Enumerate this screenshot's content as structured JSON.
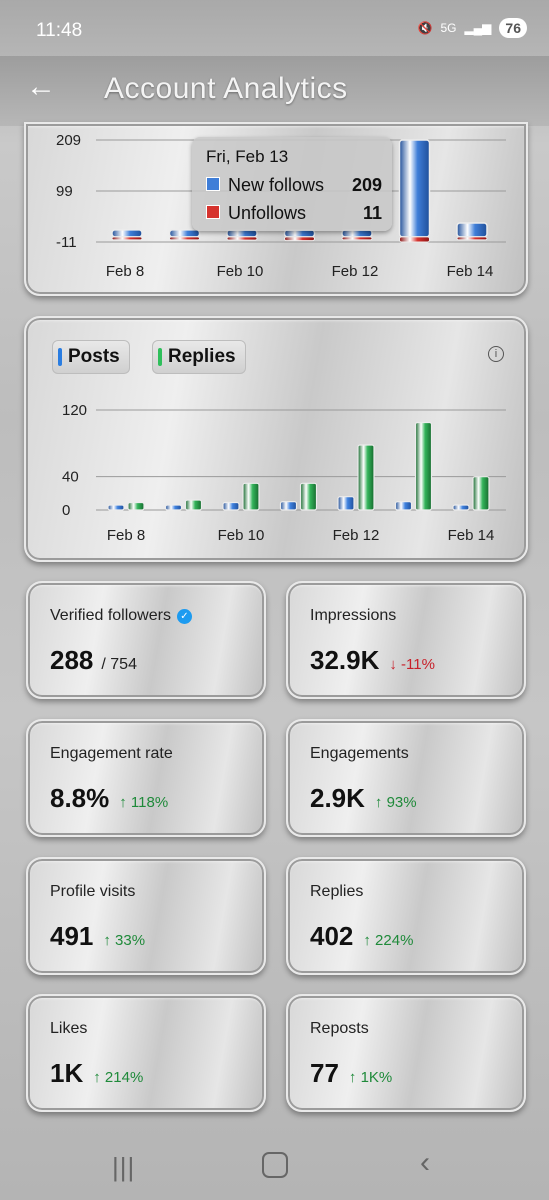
{
  "status_bar": {
    "time": "11:48",
    "network": "5G",
    "battery": "76"
  },
  "header": {
    "title": "Account Analytics"
  },
  "follows_chart": {
    "tooltip": {
      "date": "Fri, Feb 13",
      "new_follows_label": "New follows",
      "new_follows_value": "209",
      "unfollows_label": "Unfollows",
      "unfollows_value": "11"
    },
    "colors": {
      "new_follows": "#3f7ed8",
      "unfollows": "#d6332e"
    }
  },
  "posts_chart": {
    "legend": {
      "posts": "Posts",
      "replies": "Replies"
    },
    "info_icon": "info-icon",
    "colors": {
      "posts": "#3f82e0",
      "replies": "#33b45a"
    }
  },
  "chart_data": [
    {
      "type": "bar",
      "categories": [
        "Feb 8",
        "Feb 9",
        "Feb 10",
        "Feb 11",
        "Feb 12",
        "Feb 13",
        "Feb 14"
      ],
      "x_tick_labels": [
        "Feb 8",
        "Feb 10",
        "Feb 12",
        "Feb 14"
      ],
      "y_ticks": [
        "209",
        "99",
        "-11"
      ],
      "ylim": [
        -11,
        209
      ],
      "series": [
        {
          "name": "New follows",
          "values": [
            6,
            5,
            2,
            2,
            2,
            209,
            30
          ]
        },
        {
          "name": "Unfollows",
          "values": [
            -2,
            -3,
            -7,
            -8,
            -5,
            -11,
            -3
          ]
        }
      ]
    },
    {
      "type": "bar",
      "categories": [
        "Feb 8",
        "Feb 9",
        "Feb 10",
        "Feb 11",
        "Feb 12",
        "Feb 13",
        "Feb 14"
      ],
      "x_tick_labels": [
        "Feb 8",
        "Feb 10",
        "Feb 12",
        "Feb 14"
      ],
      "y_ticks": [
        "120",
        "40",
        "0"
      ],
      "ylim": [
        0,
        120
      ],
      "series": [
        {
          "name": "Posts",
          "values": [
            5,
            5,
            9,
            10,
            16,
            10,
            4
          ]
        },
        {
          "name": "Replies",
          "values": [
            9,
            12,
            32,
            32,
            78,
            105,
            40
          ]
        }
      ]
    }
  ],
  "metrics": [
    {
      "label": "Verified followers",
      "value": "288",
      "sub": "/ 754",
      "change": "",
      "direction": "none",
      "verified": true
    },
    {
      "label": "Impressions",
      "value": "32.9K",
      "sub": "",
      "change": "↓ -11%",
      "direction": "down",
      "verified": false
    },
    {
      "label": "Engagement rate",
      "value": "8.8%",
      "sub": "",
      "change": "↑ 118%",
      "direction": "up",
      "verified": false
    },
    {
      "label": "Engagements",
      "value": "2.9K",
      "sub": "",
      "change": "↑ 93%",
      "direction": "up",
      "verified": false
    },
    {
      "label": "Profile visits",
      "value": "491",
      "sub": "",
      "change": "↑ 33%",
      "direction": "up",
      "verified": false
    },
    {
      "label": "Replies",
      "value": "402",
      "sub": "",
      "change": "↑ 224%",
      "direction": "up",
      "verified": false
    },
    {
      "label": "Likes",
      "value": "1K",
      "sub": "",
      "change": "↑ 214%",
      "direction": "up",
      "verified": false
    },
    {
      "label": "Reposts",
      "value": "77",
      "sub": "",
      "change": "↑ 1K%",
      "direction": "up",
      "verified": false
    }
  ],
  "nav_bar": {
    "recents_icon": "recents-icon",
    "home_icon": "home-icon",
    "back_icon": "back-icon"
  }
}
